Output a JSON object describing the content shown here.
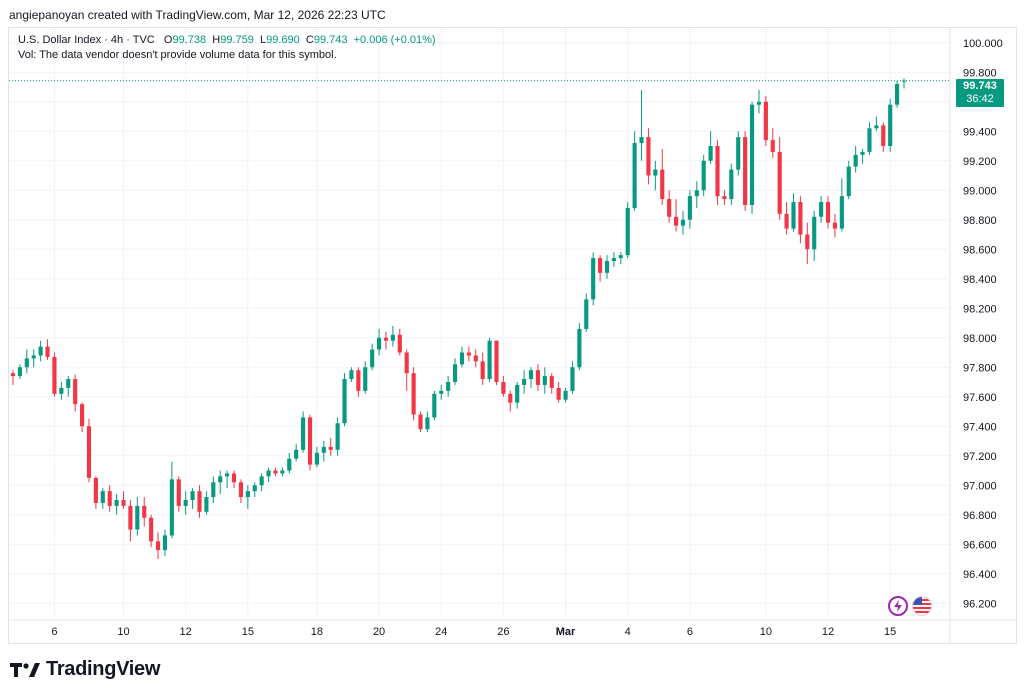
{
  "header": {
    "attribution": "angiepanoyan created with TradingView.com, Mar 12, 2026 22:23 UTC"
  },
  "legend": {
    "symbol": "U.S. Dollar Index · 4h · TVC",
    "o_label": "O",
    "o": "99.738",
    "h_label": "H",
    "h": "99.759",
    "l_label": "L",
    "l": "99.690",
    "c_label": "C",
    "c": "99.743",
    "change": "+0.006 (+0.01%)",
    "vol_note": "Vol: The data vendor doesn't provide volume data for this symbol."
  },
  "price_badge": {
    "price": "99.743",
    "countdown": "36:42"
  },
  "footer": {
    "brand": "TradingView"
  },
  "icons": {
    "left": "bolt-icon",
    "right": "us-flag-icon"
  },
  "colors": {
    "up": "#089981",
    "down": "#f23645",
    "grid": "#f0f3fa",
    "badge": "#089981"
  },
  "chart_data": {
    "type": "candlestick",
    "ylim": [
      96.1,
      100.1
    ],
    "y_ticks": [
      "100.000",
      "99.800",
      "99.600",
      "99.400",
      "99.200",
      "99.000",
      "98.800",
      "98.600",
      "98.400",
      "98.200",
      "98.000",
      "97.800",
      "97.600",
      "97.400",
      "97.200",
      "97.000",
      "96.800",
      "96.600",
      "96.400",
      "96.200"
    ],
    "y_tick_values": [
      100.0,
      99.8,
      99.6,
      99.4,
      99.2,
      99.0,
      98.8,
      98.6,
      98.4,
      98.2,
      98.0,
      97.8,
      97.6,
      97.4,
      97.2,
      97.0,
      96.8,
      96.6,
      96.4,
      96.2
    ],
    "x_ticks": [
      "6",
      "10",
      "12",
      "15",
      "18",
      "20",
      "24",
      "26",
      "Mar",
      "4",
      "6",
      "10",
      "12",
      "15"
    ],
    "x_tick_index": [
      6,
      16,
      25,
      34,
      44,
      53,
      62,
      71,
      80,
      89,
      98,
      109,
      118,
      127
    ],
    "last_price": 99.743,
    "candles": [
      [
        97.76,
        97.78,
        97.68,
        97.74
      ],
      [
        97.74,
        97.82,
        97.72,
        97.8
      ],
      [
        97.8,
        97.92,
        97.76,
        97.86
      ],
      [
        97.86,
        97.92,
        97.8,
        97.88
      ],
      [
        97.88,
        97.98,
        97.84,
        97.94
      ],
      [
        97.94,
        97.99,
        97.85,
        97.87
      ],
      [
        97.87,
        97.9,
        97.6,
        97.62
      ],
      [
        97.62,
        97.7,
        97.58,
        97.66
      ],
      [
        97.66,
        97.74,
        97.6,
        97.72
      ],
      [
        97.72,
        97.75,
        97.5,
        97.55
      ],
      [
        97.55,
        97.56,
        97.36,
        97.4
      ],
      [
        97.4,
        97.45,
        97.02,
        97.05
      ],
      [
        97.05,
        97.06,
        96.84,
        96.88
      ],
      [
        96.88,
        96.98,
        96.84,
        96.96
      ],
      [
        96.96,
        97.0,
        96.82,
        96.86
      ],
      [
        96.86,
        96.94,
        96.8,
        96.9
      ],
      [
        96.9,
        96.96,
        96.84,
        96.86
      ],
      [
        96.86,
        96.9,
        96.62,
        96.7
      ],
      [
        96.7,
        96.92,
        96.66,
        96.86
      ],
      [
        96.86,
        96.92,
        96.72,
        96.78
      ],
      [
        96.78,
        96.8,
        96.58,
        96.62
      ],
      [
        96.62,
        96.68,
        96.5,
        96.56
      ],
      [
        96.56,
        96.7,
        96.52,
        96.66
      ],
      [
        96.66,
        97.16,
        96.64,
        97.04
      ],
      [
        97.04,
        97.06,
        96.82,
        96.86
      ],
      [
        96.86,
        96.96,
        96.8,
        96.9
      ],
      [
        96.9,
        96.98,
        96.84,
        96.96
      ],
      [
        96.96,
        97.0,
        96.78,
        96.82
      ],
      [
        96.82,
        96.96,
        96.8,
        96.92
      ],
      [
        96.92,
        97.06,
        96.88,
        97.02
      ],
      [
        97.02,
        97.1,
        96.94,
        97.06
      ],
      [
        97.06,
        97.1,
        96.98,
        97.08
      ],
      [
        97.08,
        97.1,
        96.98,
        97.02
      ],
      [
        97.02,
        97.04,
        96.88,
        96.92
      ],
      [
        96.92,
        97.0,
        96.84,
        96.96
      ],
      [
        96.96,
        97.02,
        96.92,
        97.0
      ],
      [
        97.0,
        97.08,
        96.96,
        97.06
      ],
      [
        97.06,
        97.12,
        97.02,
        97.1
      ],
      [
        97.1,
        97.12,
        97.06,
        97.08
      ],
      [
        97.08,
        97.12,
        97.06,
        97.1
      ],
      [
        97.1,
        97.22,
        97.08,
        97.18
      ],
      [
        97.18,
        97.28,
        97.16,
        97.24
      ],
      [
        97.24,
        97.5,
        97.22,
        97.46
      ],
      [
        97.46,
        97.48,
        97.1,
        97.14
      ],
      [
        97.14,
        97.26,
        97.12,
        97.22
      ],
      [
        97.22,
        97.3,
        97.16,
        97.26
      ],
      [
        97.26,
        97.32,
        97.2,
        97.24
      ],
      [
        97.24,
        97.46,
        97.2,
        97.42
      ],
      [
        97.42,
        97.76,
        97.4,
        97.72
      ],
      [
        97.72,
        97.8,
        97.7,
        97.78
      ],
      [
        97.78,
        97.8,
        97.6,
        97.64
      ],
      [
        97.64,
        97.84,
        97.62,
        97.8
      ],
      [
        97.8,
        97.96,
        97.78,
        97.92
      ],
      [
        97.92,
        98.06,
        97.88,
        98.0
      ],
      [
        98.0,
        98.04,
        97.92,
        97.98
      ],
      [
        97.98,
        98.08,
        97.94,
        98.02
      ],
      [
        98.02,
        98.06,
        97.88,
        97.9
      ],
      [
        97.9,
        97.92,
        97.64,
        97.76
      ],
      [
        97.76,
        97.8,
        97.44,
        97.48
      ],
      [
        97.48,
        97.5,
        97.36,
        97.38
      ],
      [
        97.38,
        97.5,
        97.36,
        97.46
      ],
      [
        97.46,
        97.64,
        97.44,
        97.62
      ],
      [
        97.62,
        97.68,
        97.58,
        97.64
      ],
      [
        97.64,
        97.74,
        97.6,
        97.7
      ],
      [
        97.7,
        97.86,
        97.68,
        97.82
      ],
      [
        97.82,
        97.94,
        97.8,
        97.9
      ],
      [
        97.9,
        97.94,
        97.84,
        97.88
      ],
      [
        97.88,
        97.92,
        97.8,
        97.84
      ],
      [
        97.84,
        97.9,
        97.68,
        97.72
      ],
      [
        97.72,
        98.0,
        97.7,
        97.98
      ],
      [
        97.98,
        97.98,
        97.68,
        97.7
      ],
      [
        97.7,
        97.74,
        97.6,
        97.62
      ],
      [
        97.62,
        97.64,
        97.5,
        97.56
      ],
      [
        97.56,
        97.7,
        97.52,
        97.68
      ],
      [
        97.68,
        97.78,
        97.62,
        97.72
      ],
      [
        97.72,
        97.8,
        97.66,
        97.78
      ],
      [
        97.78,
        97.82,
        97.64,
        97.68
      ],
      [
        97.68,
        97.8,
        97.62,
        97.74
      ],
      [
        97.74,
        97.76,
        97.62,
        97.66
      ],
      [
        97.66,
        97.7,
        97.56,
        97.58
      ],
      [
        97.58,
        97.66,
        97.56,
        97.64
      ],
      [
        97.64,
        97.84,
        97.62,
        97.8
      ],
      [
        97.8,
        98.1,
        97.78,
        98.06
      ],
      [
        98.06,
        98.3,
        98.04,
        98.26
      ],
      [
        98.26,
        98.58,
        98.22,
        98.54
      ],
      [
        98.54,
        98.56,
        98.38,
        98.44
      ],
      [
        98.44,
        98.56,
        98.4,
        98.52
      ],
      [
        98.52,
        98.58,
        98.48,
        98.54
      ],
      [
        98.54,
        98.58,
        98.5,
        98.56
      ],
      [
        98.56,
        98.92,
        98.54,
        98.88
      ],
      [
        98.88,
        99.4,
        98.86,
        99.32
      ],
      [
        99.32,
        99.68,
        99.2,
        99.36
      ],
      [
        99.36,
        99.42,
        99.04,
        99.1
      ],
      [
        99.1,
        99.2,
        99.0,
        99.14
      ],
      [
        99.14,
        99.28,
        98.9,
        98.94
      ],
      [
        98.94,
        99.0,
        98.78,
        98.82
      ],
      [
        98.82,
        98.94,
        98.72,
        98.76
      ],
      [
        98.76,
        98.86,
        98.7,
        98.8
      ],
      [
        98.8,
        99.0,
        98.74,
        98.96
      ],
      [
        98.96,
        99.06,
        98.88,
        99.0
      ],
      [
        99.0,
        99.24,
        98.96,
        99.2
      ],
      [
        99.2,
        99.4,
        99.18,
        99.3
      ],
      [
        99.3,
        99.34,
        98.9,
        98.96
      ],
      [
        98.96,
        99.0,
        98.9,
        98.94
      ],
      [
        98.94,
        99.18,
        98.9,
        99.14
      ],
      [
        99.14,
        99.4,
        99.1,
        99.36
      ],
      [
        99.36,
        99.4,
        98.86,
        98.9
      ],
      [
        98.9,
        99.6,
        98.84,
        99.58
      ],
      [
        99.58,
        99.68,
        99.52,
        99.6
      ],
      [
        99.6,
        99.64,
        99.3,
        99.34
      ],
      [
        99.34,
        99.42,
        99.22,
        99.26
      ],
      [
        99.26,
        99.36,
        98.8,
        98.84
      ],
      [
        98.84,
        98.92,
        98.7,
        98.74
      ],
      [
        98.74,
        98.98,
        98.72,
        98.92
      ],
      [
        98.92,
        98.96,
        98.64,
        98.7
      ],
      [
        98.7,
        98.78,
        98.5,
        98.6
      ],
      [
        98.6,
        98.86,
        98.52,
        98.82
      ],
      [
        98.82,
        98.96,
        98.78,
        98.92
      ],
      [
        98.92,
        98.96,
        98.74,
        98.78
      ],
      [
        98.78,
        98.84,
        98.68,
        98.74
      ],
      [
        98.74,
        99.08,
        98.72,
        98.96
      ],
      [
        98.96,
        99.2,
        98.94,
        99.16
      ],
      [
        99.16,
        99.3,
        99.12,
        99.24
      ],
      [
        99.24,
        99.28,
        99.18,
        99.26
      ],
      [
        99.26,
        99.46,
        99.24,
        99.42
      ],
      [
        99.42,
        99.5,
        99.4,
        99.44
      ],
      [
        99.44,
        99.46,
        99.26,
        99.3
      ],
      [
        99.3,
        99.62,
        99.26,
        99.58
      ],
      [
        99.58,
        99.74,
        99.56,
        99.72
      ],
      [
        99.738,
        99.759,
        99.69,
        99.743
      ]
    ]
  }
}
